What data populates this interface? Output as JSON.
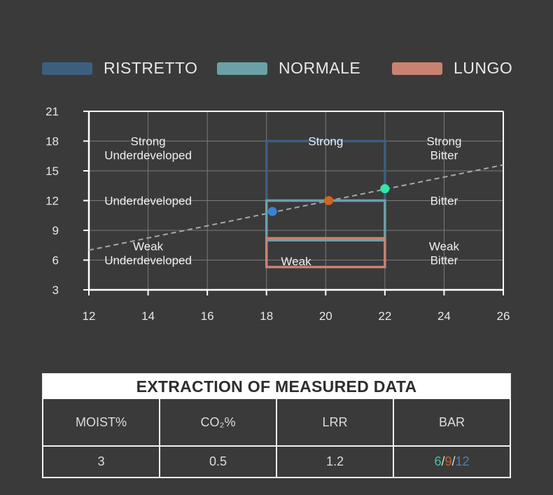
{
  "chart_data": {
    "type": "scatter",
    "xlim": [
      12,
      26
    ],
    "ylim": [
      3,
      21
    ],
    "x_ticks": [
      "12",
      "14",
      "16",
      "18",
      "20",
      "22",
      "24",
      "26"
    ],
    "y_ticks": [
      "3",
      "6",
      "9",
      "12",
      "15",
      "18",
      "21"
    ],
    "grid": true,
    "legend_position": "top",
    "series": [
      {
        "name": "RISTRETTO",
        "color": "#3c5f80",
        "region": {
          "x": [
            18,
            22
          ],
          "y": [
            12,
            18
          ]
        }
      },
      {
        "name": "NORMALE",
        "color": "#6aa1a8",
        "region": {
          "x": [
            18,
            22
          ],
          "y": [
            8,
            12
          ]
        }
      },
      {
        "name": "LUNGO",
        "color": "#c98272",
        "region": {
          "x": [
            18,
            22
          ],
          "y": [
            5.3,
            8.2
          ]
        }
      }
    ],
    "points": [
      {
        "x": 18.2,
        "y": 10.9,
        "color": "#3b82d4"
      },
      {
        "x": 20.1,
        "y": 12.0,
        "color": "#d0651c"
      },
      {
        "x": 22.0,
        "y": 13.2,
        "color": "#2ee8a8"
      }
    ],
    "trend_line": {
      "x": [
        12,
        26
      ],
      "y": [
        7.0,
        15.6
      ]
    },
    "zone_labels": [
      {
        "lines": [
          "Strong",
          "Underdeveloped"
        ],
        "x": 14,
        "y": 17.3
      },
      {
        "lines": [
          "Underdeveloped"
        ],
        "x": 14,
        "y": 12.0
      },
      {
        "lines": [
          "Weak",
          "Underdeveloped"
        ],
        "x": 14,
        "y": 6.7
      },
      {
        "lines": [
          "Strong"
        ],
        "x": 20,
        "y": 18.0
      },
      {
        "lines": [
          "Weak"
        ],
        "x": 19.0,
        "y": 5.9
      },
      {
        "lines": [
          "Strong",
          "Bitter"
        ],
        "x": 24,
        "y": 17.3
      },
      {
        "lines": [
          "Bitter"
        ],
        "x": 24,
        "y": 12.0
      },
      {
        "lines": [
          "Weak",
          "Bitter"
        ],
        "x": 24,
        "y": 6.7
      }
    ]
  },
  "colors": {
    "background": "#3a3a3a",
    "grid": "#7a7a7a",
    "axis": "#ffffff",
    "text": "#e6e6e6",
    "trend": "#a8a8a8"
  },
  "table": {
    "title": "EXTRACTION OF MEASURED DATA",
    "headers": [
      "MOIST%",
      "CO₂%",
      "LRR",
      "BAR"
    ],
    "values": [
      "3",
      "0.5",
      "1.2"
    ],
    "bar": {
      "v1": "6",
      "v1_color": "#3ec4a0",
      "sep": "/",
      "v2": "9",
      "v2_color": "#c8632a",
      "v3": "12",
      "v3_color": "#4b7fb6"
    }
  }
}
